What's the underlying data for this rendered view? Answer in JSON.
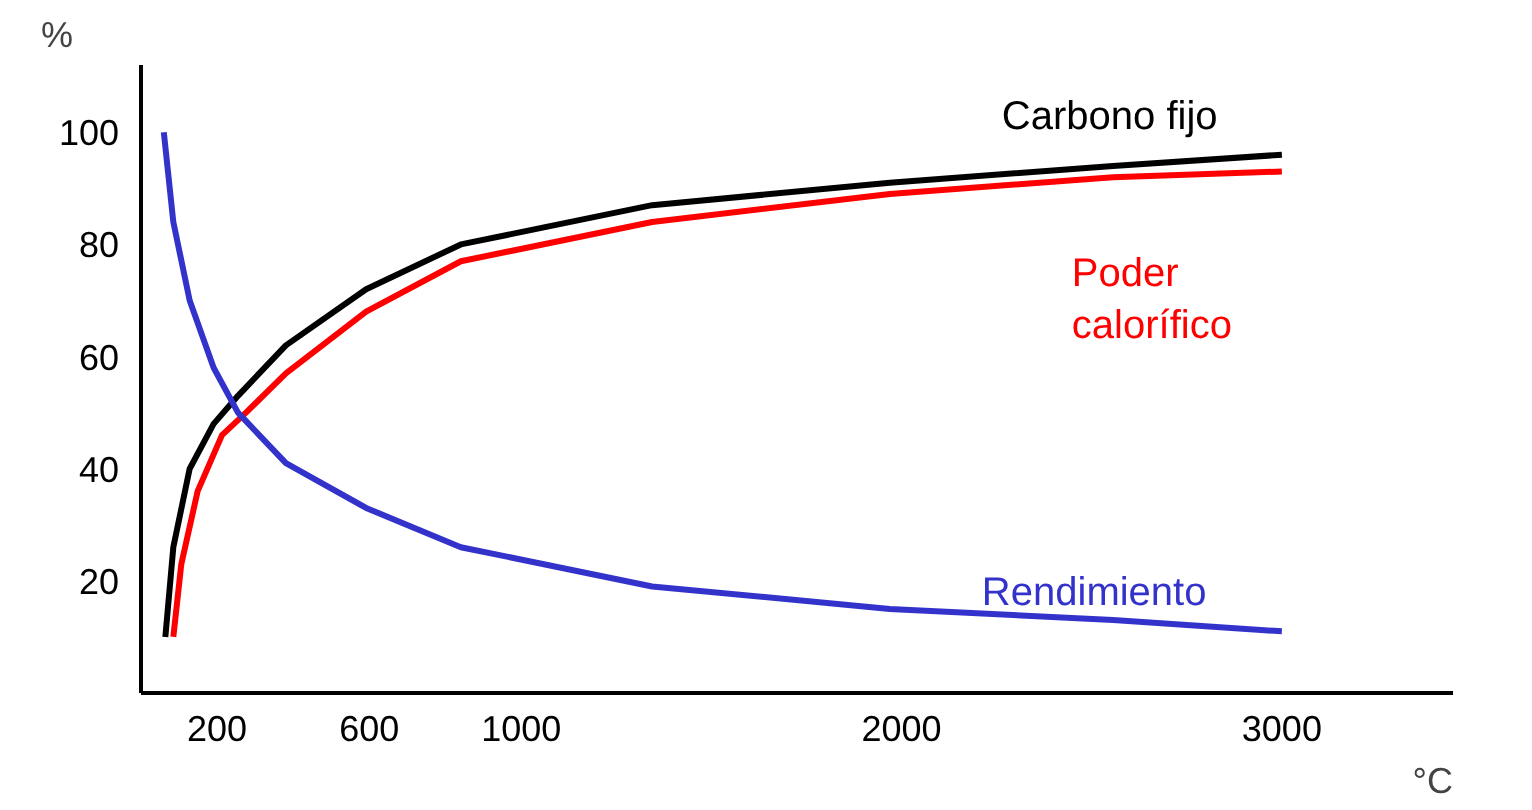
{
  "chart_data": {
    "type": "line",
    "xlabel": "°C",
    "ylabel": "%",
    "xlim": [
      0,
      3450
    ],
    "ylim": [
      0,
      112
    ],
    "xticks": [
      200,
      600,
      1000,
      2000,
      3000
    ],
    "yticks": [
      20,
      40,
      60,
      80,
      100
    ],
    "grid": false,
    "marker": "none",
    "line_style": "solid",
    "series": [
      {
        "name": "Carbono fijo",
        "color": "#000000",
        "x": [
          64,
          85,
          128,
          191,
          255,
          381,
          592,
          841,
          1344,
          1969,
          2556,
          3000
        ],
        "values": [
          10,
          26,
          40,
          48,
          53,
          62,
          72,
          80,
          87,
          91,
          94,
          96
        ]
      },
      {
        "name": "Poder calorífico",
        "color": "#ff0000",
        "x": [
          85,
          106,
          149,
          213,
          276,
          381,
          592,
          841,
          1344,
          1969,
          2556,
          3000
        ],
        "values": [
          10,
          23,
          36,
          46,
          50,
          57,
          68,
          77,
          84,
          89,
          92,
          93
        ]
      },
      {
        "name": "Rendimiento",
        "color": "#3333cc",
        "x": [
          60,
          85,
          128,
          191,
          255,
          381,
          592,
          841,
          1344,
          1969,
          2556,
          3000
        ],
        "values": [
          100,
          84,
          70,
          58,
          50,
          41,
          33,
          26,
          19,
          15,
          13,
          11
        ]
      }
    ]
  }
}
